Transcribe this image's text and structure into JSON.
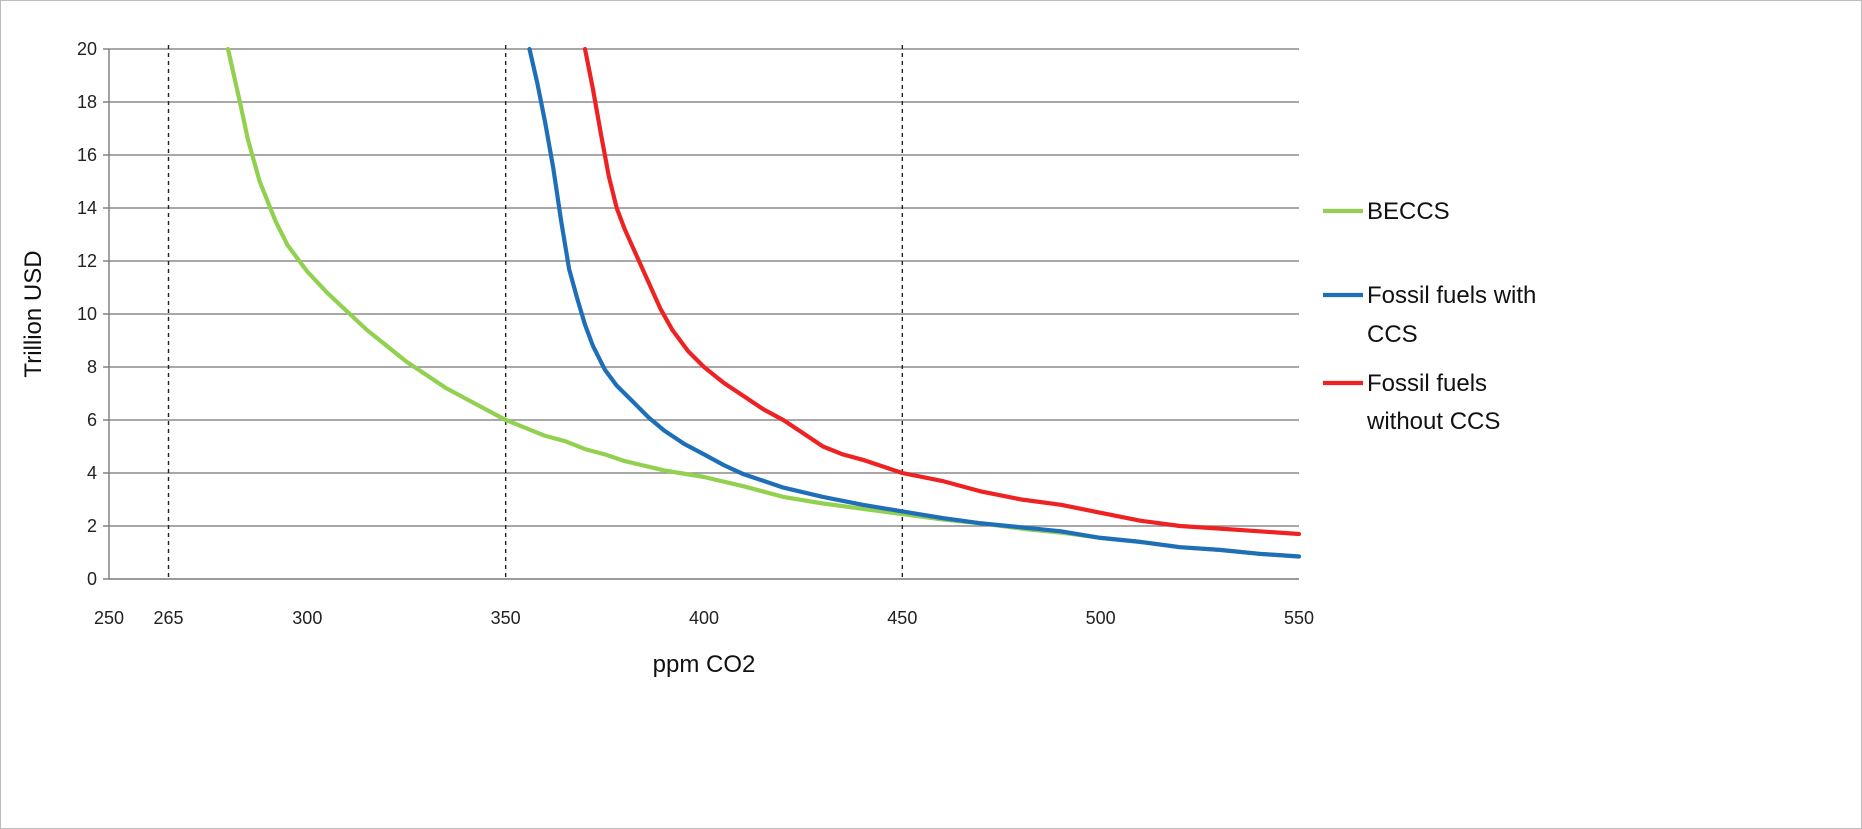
{
  "chart_data": {
    "type": "line",
    "xlabel": "ppm CO2",
    "ylabel": "Trillion USD",
    "xlim": [
      250,
      550
    ],
    "ylim": [
      0,
      20
    ],
    "x_ticks": [
      250,
      265,
      300,
      350,
      400,
      450,
      500,
      550
    ],
    "y_ticks": [
      0,
      2,
      4,
      6,
      8,
      10,
      12,
      14,
      16,
      18,
      20
    ],
    "vertical_reference_lines": [
      265,
      350,
      450
    ],
    "grid": "horizontal",
    "legend_position": "right",
    "series": [
      {
        "name": "BECCS",
        "color": "#92d050",
        "legend_lines": [
          "BECCS"
        ],
        "points": [
          [
            280,
            20
          ],
          [
            283,
            18
          ],
          [
            285,
            16.6
          ],
          [
            288,
            15
          ],
          [
            292,
            13.5
          ],
          [
            295,
            12.6
          ],
          [
            300,
            11.6
          ],
          [
            305,
            10.8
          ],
          [
            310,
            10.1
          ],
          [
            315,
            9.4
          ],
          [
            320,
            8.8
          ],
          [
            325,
            8.2
          ],
          [
            330,
            7.7
          ],
          [
            335,
            7.2
          ],
          [
            340,
            6.8
          ],
          [
            345,
            6.4
          ],
          [
            350,
            6.0
          ],
          [
            355,
            5.7
          ],
          [
            360,
            5.4
          ],
          [
            365,
            5.2
          ],
          [
            370,
            4.9
          ],
          [
            375,
            4.7
          ],
          [
            380,
            4.45
          ],
          [
            390,
            4.1
          ],
          [
            400,
            3.85
          ],
          [
            410,
            3.5
          ],
          [
            420,
            3.1
          ],
          [
            430,
            2.85
          ],
          [
            440,
            2.65
          ],
          [
            450,
            2.45
          ],
          [
            460,
            2.25
          ],
          [
            470,
            2.1
          ],
          [
            480,
            1.9
          ],
          [
            490,
            1.75
          ],
          [
            500,
            1.55
          ],
          [
            510,
            1.4
          ],
          [
            520,
            1.2
          ],
          [
            530,
            1.1
          ],
          [
            540,
            0.95
          ],
          [
            550,
            0.85
          ]
        ]
      },
      {
        "name": "Fossil fuels with CCS",
        "color": "#1f6fb8",
        "legend_lines": [
          "Fossil fuels with",
          "CCS"
        ],
        "points": [
          [
            356,
            20
          ],
          [
            358,
            18.7
          ],
          [
            360,
            17.2
          ],
          [
            362,
            15.5
          ],
          [
            364,
            13.5
          ],
          [
            366,
            11.7
          ],
          [
            368,
            10.6
          ],
          [
            370,
            9.6
          ],
          [
            372,
            8.8
          ],
          [
            375,
            7.9
          ],
          [
            378,
            7.3
          ],
          [
            382,
            6.7
          ],
          [
            386,
            6.1
          ],
          [
            390,
            5.6
          ],
          [
            395,
            5.1
          ],
          [
            400,
            4.7
          ],
          [
            405,
            4.3
          ],
          [
            410,
            3.95
          ],
          [
            415,
            3.7
          ],
          [
            420,
            3.45
          ],
          [
            430,
            3.1
          ],
          [
            440,
            2.8
          ],
          [
            450,
            2.55
          ],
          [
            460,
            2.3
          ],
          [
            470,
            2.1
          ],
          [
            480,
            1.95
          ],
          [
            490,
            1.8
          ],
          [
            500,
            1.55
          ],
          [
            510,
            1.4
          ],
          [
            520,
            1.2
          ],
          [
            530,
            1.1
          ],
          [
            540,
            0.95
          ],
          [
            550,
            0.85
          ]
        ]
      },
      {
        "name": "Fossil fuels without CCS",
        "color": "#ee2222",
        "legend_lines": [
          "Fossil fuels",
          "without CCS"
        ],
        "points": [
          [
            370,
            20
          ],
          [
            372,
            18.5
          ],
          [
            374,
            16.8
          ],
          [
            376,
            15.2
          ],
          [
            378,
            14
          ],
          [
            380,
            13.2
          ],
          [
            383,
            12.2
          ],
          [
            386,
            11.2
          ],
          [
            389,
            10.2
          ],
          [
            392,
            9.4
          ],
          [
            396,
            8.6
          ],
          [
            400,
            8.0
          ],
          [
            405,
            7.4
          ],
          [
            410,
            6.9
          ],
          [
            415,
            6.4
          ],
          [
            420,
            6.0
          ],
          [
            425,
            5.5
          ],
          [
            430,
            5.0
          ],
          [
            435,
            4.7
          ],
          [
            440,
            4.5
          ],
          [
            445,
            4.25
          ],
          [
            450,
            4.0
          ],
          [
            460,
            3.7
          ],
          [
            470,
            3.3
          ],
          [
            480,
            3.0
          ],
          [
            490,
            2.8
          ],
          [
            500,
            2.5
          ],
          [
            510,
            2.2
          ],
          [
            520,
            2.0
          ],
          [
            530,
            1.9
          ],
          [
            540,
            1.8
          ],
          [
            550,
            1.7
          ]
        ]
      }
    ]
  }
}
